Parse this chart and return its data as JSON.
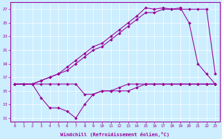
{
  "xlabel": "Windchill (Refroidissement éolien,°C)",
  "bg_color": "#cceeff",
  "line_color": "#990099",
  "xlim": [
    -0.5,
    23.5
  ],
  "ylim": [
    10.5,
    28.0
  ],
  "xticks": [
    0,
    1,
    2,
    3,
    4,
    5,
    6,
    7,
    8,
    9,
    10,
    11,
    12,
    13,
    14,
    15,
    16,
    17,
    18,
    19,
    20,
    21,
    22,
    23
  ],
  "yticks": [
    11,
    13,
    15,
    17,
    19,
    21,
    23,
    25,
    27
  ],
  "series": [
    [
      16.0,
      16.0,
      16.0,
      16.0,
      16.0,
      16.0,
      16.0,
      16.0,
      14.5,
      14.5,
      15.0,
      15.0,
      15.0,
      15.0,
      15.5,
      16.0,
      16.0,
      16.0,
      16.0,
      16.0,
      16.0,
      16.0,
      16.0,
      16.0
    ],
    [
      16.0,
      16.0,
      16.0,
      14.0,
      12.5,
      12.5,
      12.0,
      11.0,
      13.0,
      14.5,
      15.0,
      15.0,
      15.5,
      16.0,
      16.0,
      16.0,
      16.0,
      16.0,
      16.0,
      16.0,
      16.0,
      16.0,
      16.0,
      16.0
    ],
    [
      16.0,
      16.0,
      16.0,
      16.5,
      17.0,
      17.5,
      18.5,
      19.5,
      20.5,
      21.5,
      22.0,
      23.0,
      24.0,
      25.0,
      26.0,
      27.2,
      27.0,
      27.2,
      27.0,
      27.2,
      25.0,
      19.0,
      17.5,
      16.0
    ],
    [
      16.0,
      16.0,
      16.0,
      16.5,
      17.0,
      17.5,
      18.0,
      19.0,
      20.0,
      21.0,
      21.5,
      22.5,
      23.5,
      24.5,
      25.5,
      26.5,
      26.5,
      27.0,
      27.0,
      27.0,
      27.0,
      27.0,
      27.0,
      17.5
    ]
  ]
}
